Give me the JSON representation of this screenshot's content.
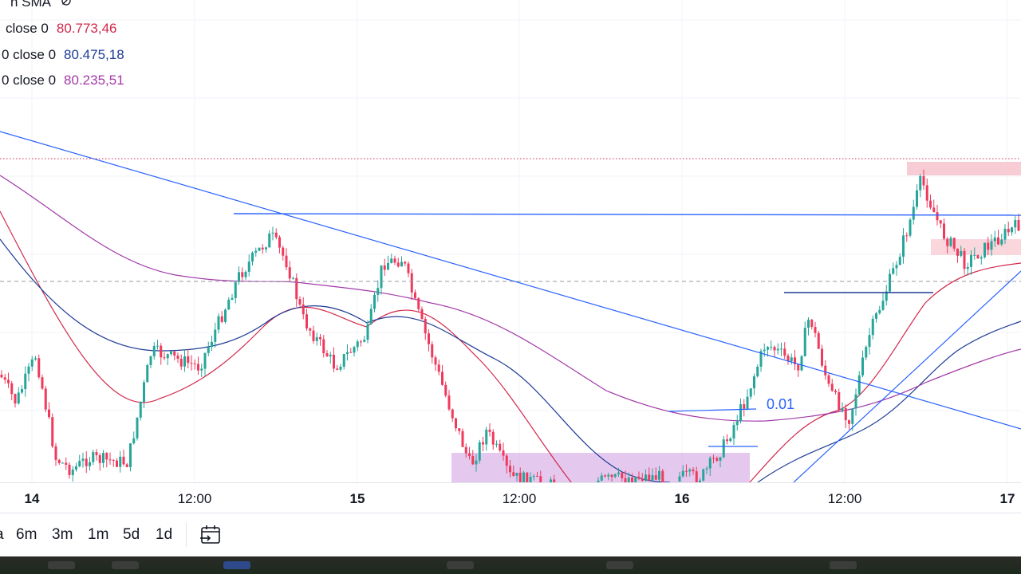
{
  "legend": {
    "title": "n SMA",
    "rows": [
      {
        "label": "close 0",
        "value": "80.773,46",
        "color": "#d1294c"
      },
      {
        "label": "0 close 0",
        "value": "80.475,18",
        "color": "#1e3c96"
      },
      {
        "label": "0 close 0",
        "value": "80.235,51",
        "color": "#a23aa8"
      }
    ]
  },
  "chart_data": {
    "type": "candlestick",
    "x_ticks": [
      {
        "label": "14",
        "bold": true
      },
      {
        "label": "12:00",
        "bold": false
      },
      {
        "label": "15",
        "bold": true
      },
      {
        "label": "12:00",
        "bold": false
      },
      {
        "label": "16",
        "bold": true
      },
      {
        "label": "12:00",
        "bold": false
      },
      {
        "label": "17",
        "bold": true
      }
    ],
    "annotations": [
      {
        "text": "0.01"
      }
    ],
    "colors": {
      "up": "#26a69a",
      "down": "#ef3a5d",
      "sma_red": "#d1294c",
      "sma_blue": "#1e3c96",
      "sma_purple": "#a23aa8",
      "drawing_blue": "#2962ff",
      "zone_pink": "#f7c6cf",
      "zone_purple": "#dcb6e8"
    }
  },
  "range_bar": {
    "buttons": [
      "a",
      "6m",
      "3m",
      "1m",
      "5d",
      "1d"
    ],
    "calendar_icon": "calendar-goto-icon"
  }
}
